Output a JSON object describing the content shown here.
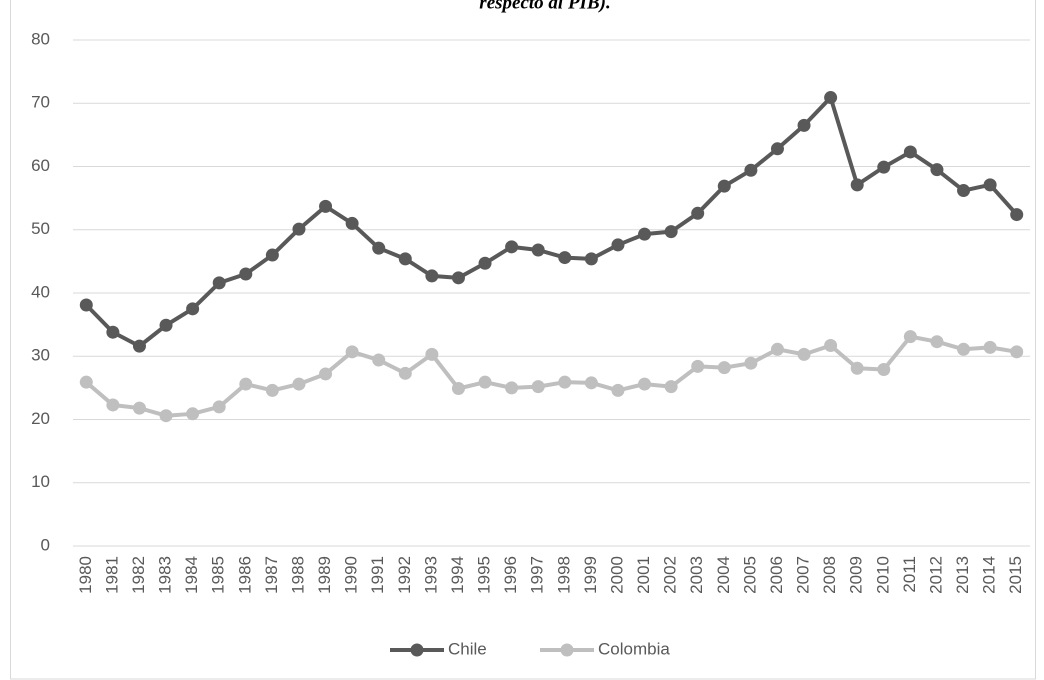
{
  "chart_data": {
    "type": "line",
    "title": "respecto al PIB).",
    "categories": [
      "1980",
      "1981",
      "1982",
      "1983",
      "1984",
      "1985",
      "1986",
      "1987",
      "1988",
      "1989",
      "1990",
      "1991",
      "1992",
      "1993",
      "1994",
      "1995",
      "1996",
      "1997",
      "1998",
      "1999",
      "2000",
      "2001",
      "2002",
      "2003",
      "2004",
      "2005",
      "2006",
      "2007",
      "2008",
      "2009",
      "2010",
      "2011",
      "2012",
      "2013",
      "2014",
      "2015"
    ],
    "series": [
      {
        "name": "Chile",
        "color": "#595959",
        "values": [
          38.1,
          33.8,
          31.6,
          34.9,
          37.5,
          41.6,
          43.0,
          46.0,
          50.1,
          53.7,
          51.0,
          47.1,
          45.4,
          42.7,
          42.4,
          44.7,
          47.3,
          46.8,
          45.6,
          45.4,
          47.6,
          49.3,
          49.7,
          52.6,
          56.9,
          59.4,
          62.8,
          66.5,
          70.9,
          57.1,
          59.9,
          62.3,
          59.5,
          56.2,
          57.1,
          52.4
        ]
      },
      {
        "name": "Colombia",
        "color": "#bfbfbf",
        "values": [
          25.9,
          22.3,
          21.8,
          20.6,
          20.9,
          22.0,
          25.6,
          24.6,
          25.6,
          27.2,
          30.7,
          29.4,
          27.3,
          30.3,
          24.9,
          25.9,
          25.0,
          25.2,
          25.9,
          25.8,
          24.6,
          25.6,
          25.2,
          28.4,
          28.2,
          28.9,
          31.1,
          30.3,
          31.7,
          28.1,
          27.9,
          33.1,
          32.3,
          31.1,
          31.4,
          30.7
        ]
      }
    ],
    "ylim": [
      0,
      80
    ],
    "yticks": [
      0,
      10,
      20,
      30,
      40,
      50,
      60,
      70,
      80
    ],
    "grid": true,
    "legend": "bottom"
  }
}
